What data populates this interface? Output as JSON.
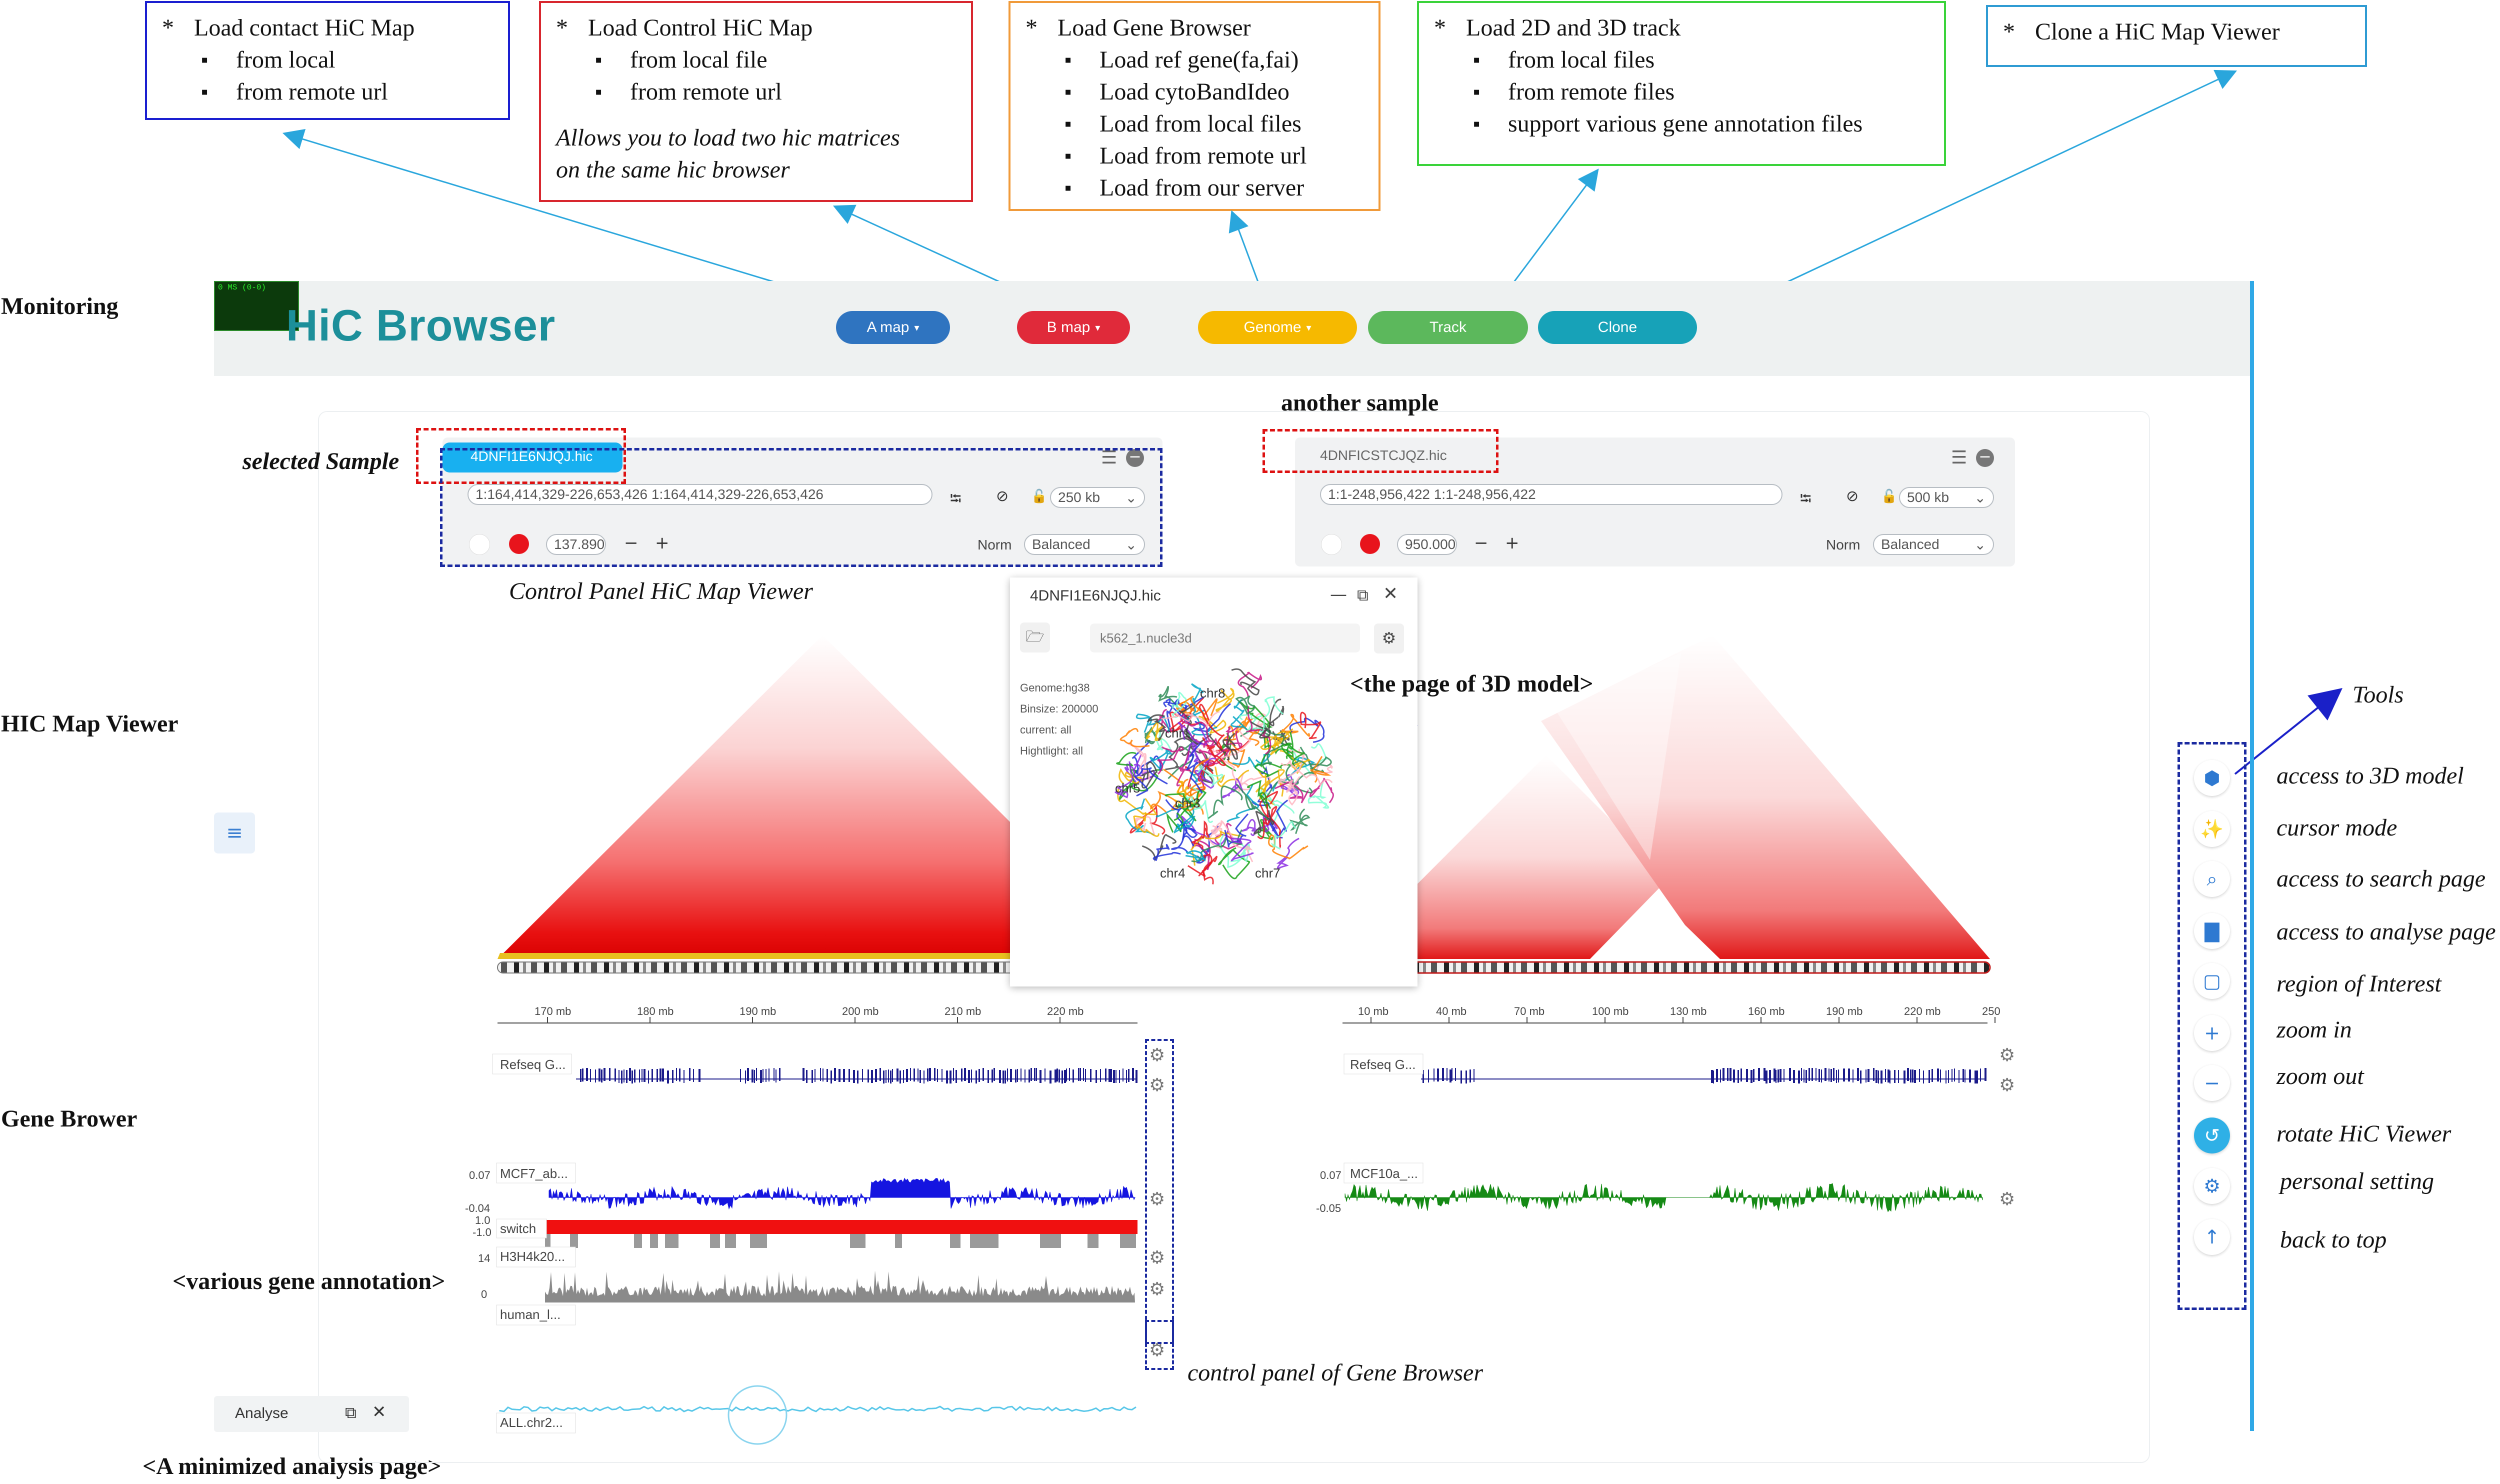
{
  "callouts": {
    "a_map": {
      "title": "Load contact HiC Map",
      "items": [
        "from local",
        "from remote url"
      ]
    },
    "b_map": {
      "title": "Load Control HiC Map",
      "items": [
        "from local file",
        "from remote url"
      ],
      "note_line1": "Allows you to load two hic matrices",
      "note_line2": "on the same hic browser"
    },
    "genome": {
      "title": "Load Gene Browser",
      "items": [
        "Load ref gene(fa,fai)",
        "Load  cytoBandIdeo",
        "Load from local files",
        "Load from remote url",
        "Load from our server"
      ]
    },
    "track": {
      "title": "Load 2D and 3D track",
      "items": [
        "from local files",
        "from remote files",
        "support various gene annotation  files"
      ]
    },
    "clone": {
      "title": "Clone a HiC Map Viewer"
    },
    "star": "*"
  },
  "side_labels": {
    "monitoring": "Monitoring",
    "hic_map_viewer": "HIC Map Viewer",
    "gene_brower": "Gene Brower",
    "various_gene_annotation": "<various gene annotation>",
    "minimized_analysis": "<A minimized analysis page>"
  },
  "annotations": {
    "selected_sample": "selected Sample",
    "another_sample": "another sample",
    "control_panel_viewer": "Control Panel HiC Map Viewer",
    "page_3d_model": "<the page of 3D model>",
    "tools": "Tools",
    "control_panel_gene": "control panel of Gene Browser"
  },
  "app": {
    "fps_meter": "0 MS (0-0)",
    "title": "HiC Browser",
    "nav": {
      "a_map": "A map",
      "b_map": "B map",
      "genome": "Genome",
      "track": "Track",
      "clone": "Clone"
    },
    "colors": {
      "a_map": "#2f74c0",
      "b_map": "#e02a3a",
      "genome": "#f6b900",
      "track": "#5cb85c",
      "clone": "#17a2b8",
      "title": "#1c8f9a"
    }
  },
  "viewer_left": {
    "sample": "4DNFI1E6NJQJ.hic",
    "locus": "1:164,414,329-226,653,426 1:164,414,329-226,653,426",
    "resolution": "250 kb",
    "color_max": "137.890",
    "norm_label": "Norm",
    "norm_value": "Balanced",
    "ticks": [
      "170 mb",
      "180 mb",
      "190 mb",
      "200 mb",
      "210 mb",
      "220 mb"
    ],
    "tracks": [
      "Refseq G...",
      "MCF7_ab...",
      "switch",
      "H3H4k20...",
      "human_l...",
      "ALL.chr2..."
    ],
    "axis_top": "0.07",
    "axis_bottom": "-0.04",
    "switch_top": "1.0",
    "switch_bottom": "-1.0",
    "h3_top": "14",
    "h3_bottom": "0"
  },
  "viewer_right": {
    "sample": "4DNFICSTCJQZ.hic",
    "locus": "1:1-248,956,422 1:1-248,956,422",
    "resolution": "500 kb",
    "color_max": "950.000",
    "norm_label": "Norm",
    "norm_value": "Balanced",
    "ticks": [
      "10 mb",
      "40 mb",
      "70 mb",
      "100 mb",
      "130 mb",
      "160 mb",
      "190 mb",
      "220 mb",
      "250"
    ],
    "tracks": [
      "Refseq G...",
      "MCF10a_..."
    ],
    "axis_top": "0.07",
    "axis_bottom": "-0.05"
  },
  "model3d": {
    "title": "4DNFI1E6NJQJ.hic",
    "file": "k562_1.nucle3d",
    "genome": "Genome:hg38",
    "binsize": "Binsize: 200000",
    "current": "current: all",
    "highlight": "Hightlight: all",
    "chr_labels": [
      "chr8",
      "chr1",
      "chr5",
      "chr3",
      "chr4",
      "chr7"
    ]
  },
  "tools": [
    {
      "icon": "cube-icon",
      "label": "access to 3D model"
    },
    {
      "icon": "magic-wand-icon",
      "label": "cursor mode"
    },
    {
      "icon": "search-icon",
      "label": "access to search page"
    },
    {
      "icon": "bar-chart-icon",
      "label": "access to analyse page"
    },
    {
      "icon": "square-icon",
      "label": "region of Interest"
    },
    {
      "icon": "plus-icon",
      "label": "zoom in"
    },
    {
      "icon": "minus-icon",
      "label": "zoom out"
    },
    {
      "icon": "rotate-icon",
      "label": "rotate HiC Viewer"
    },
    {
      "icon": "gear-icon",
      "label": "personal setting"
    },
    {
      "icon": "arrow-up-icon",
      "label": "back to top"
    }
  ],
  "analyse_bar": {
    "label": "Analyse"
  }
}
